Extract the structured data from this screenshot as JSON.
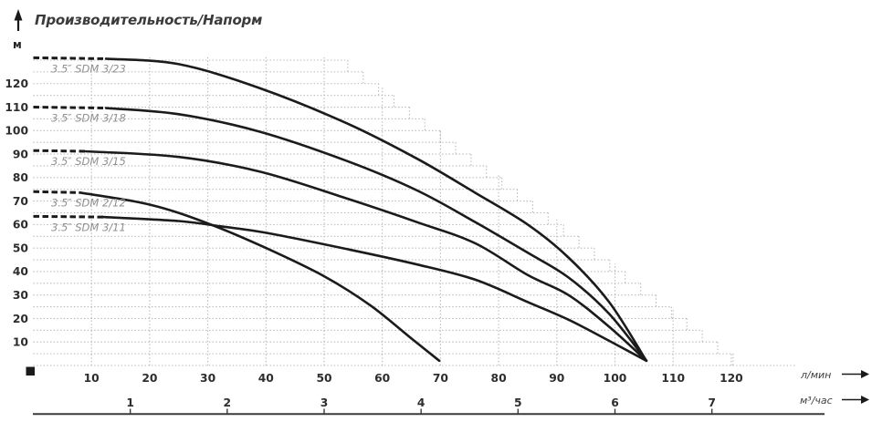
{
  "title": "Производительность/Напорм",
  "y_axis": {
    "unit": "м",
    "ticks": [
      10,
      20,
      30,
      40,
      50,
      60,
      70,
      80,
      90,
      100,
      110,
      120
    ]
  },
  "x_axis_lmin": {
    "unit": "л/мин",
    "ticks": [
      10,
      20,
      30,
      40,
      50,
      60,
      70,
      80,
      90,
      100,
      110,
      120
    ]
  },
  "x_axis_m3h": {
    "unit": "м³/час",
    "ticks": [
      1,
      2,
      3,
      4,
      5,
      6,
      7
    ]
  },
  "colors": {
    "curve": "#1b1b1b",
    "grid": "#b7b7b7",
    "series_label": "#8f8f8f",
    "tick_text": "#2d2d2d",
    "title_text": "#3b3b3b",
    "axis_line": "#3a3a3a",
    "marker": "#1a1a1a"
  },
  "chart_data": {
    "type": "line",
    "title": "Производительность/Напорм",
    "ylabel": "м",
    "xlabel_primary": "л/мин",
    "xlabel_secondary": "м³/час",
    "xlim": [
      0,
      135
    ],
    "ylim": [
      0,
      135
    ],
    "grid": "dotted, rows every 5 м, columns every 10 л/мин, stepped envelope",
    "legend_position": "labels at curve start",
    "series": [
      {
        "name": "3.5″ SDM 3/23",
        "max_head_m": 131,
        "dash_end_lmin": 12.5,
        "points": [
          [
            0,
            131
          ],
          [
            12.5,
            130.6
          ],
          [
            25,
            128.3
          ],
          [
            39,
            118
          ],
          [
            54,
            103
          ],
          [
            66,
            88
          ],
          [
            76,
            73.5
          ],
          [
            85,
            60
          ],
          [
            92,
            46
          ],
          [
            99,
            27
          ],
          [
            105.4,
            2
          ]
        ]
      },
      {
        "name": "3.5″ SDM 3/18",
        "max_head_m": 110,
        "dash_end_lmin": 12.5,
        "points": [
          [
            0,
            110
          ],
          [
            12.5,
            109.6
          ],
          [
            25,
            107
          ],
          [
            39,
            99.5
          ],
          [
            54,
            87
          ],
          [
            66,
            74.5
          ],
          [
            76,
            61
          ],
          [
            85,
            48
          ],
          [
            92,
            37.5
          ],
          [
            99,
            22
          ],
          [
            105.4,
            2
          ]
        ]
      },
      {
        "name": "3.5″ SDM 3/15",
        "max_head_m": 91.5,
        "dash_end_lmin": 9,
        "points": [
          [
            0,
            91.5
          ],
          [
            9,
            91.2
          ],
          [
            25,
            88.8
          ],
          [
            39,
            82.5
          ],
          [
            54,
            71
          ],
          [
            66,
            61
          ],
          [
            76,
            52
          ],
          [
            85,
            38.5
          ],
          [
            92,
            30
          ],
          [
            99,
            16.5
          ],
          [
            105.4,
            2
          ]
        ]
      },
      {
        "name": "3.5″ SDM 2/12",
        "max_head_m": 74,
        "dash_end_lmin": 8,
        "points": [
          [
            0,
            74
          ],
          [
            8,
            73.6
          ],
          [
            20,
            68.5
          ],
          [
            30,
            60.5
          ],
          [
            40,
            50
          ],
          [
            50,
            38
          ],
          [
            58,
            25.5
          ],
          [
            65,
            11.5
          ],
          [
            69.8,
            2
          ]
        ]
      },
      {
        "name": "3.5″ SDM 3/11",
        "max_head_m": 63.5,
        "dash_end_lmin": 12,
        "points": [
          [
            0,
            63.5
          ],
          [
            12,
            63.2
          ],
          [
            25,
            61.5
          ],
          [
            32,
            59.3
          ],
          [
            40,
            56.5
          ],
          [
            54,
            49.5
          ],
          [
            66,
            43
          ],
          [
            76,
            36.5
          ],
          [
            85,
            27
          ],
          [
            92,
            19.5
          ],
          [
            99,
            10.5
          ],
          [
            105.4,
            2
          ]
        ]
      }
    ]
  }
}
